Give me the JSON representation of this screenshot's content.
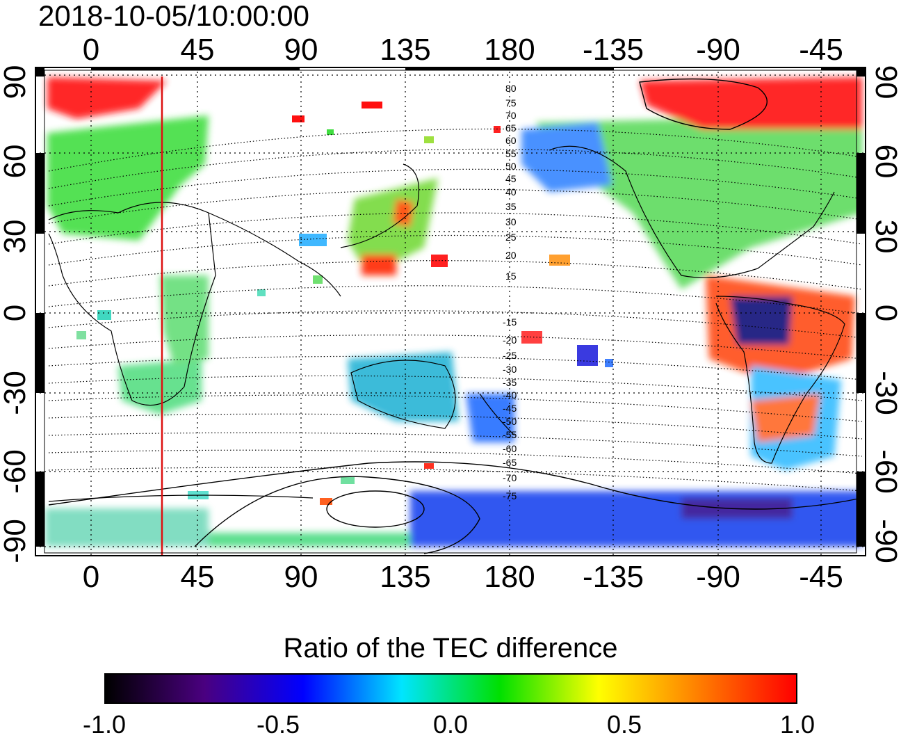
{
  "title": "2018-10-05/10:00:00",
  "map": {
    "top_ticks": [
      "0",
      "45",
      "90",
      "135",
      "180",
      "-135",
      "-90",
      "-45"
    ],
    "bottom_ticks": [
      "0",
      "45",
      "90",
      "135",
      "180",
      "-135",
      "-90",
      "-45"
    ],
    "left_ticks": [
      "90",
      "60",
      "30",
      "0",
      "-30",
      "-60",
      "-90"
    ],
    "right_ticks": [
      "90",
      "60",
      "30",
      "0",
      "-30",
      "-60",
      "-90"
    ],
    "magnetic_latitude_labels_north": [
      "80",
      "75",
      "70",
      "65",
      "60",
      "55",
      "50",
      "45",
      "40",
      "35",
      "30",
      "25",
      "20",
      "15"
    ],
    "magnetic_latitude_labels_south": [
      "-15",
      "-20",
      "-25",
      "-30",
      "-35",
      "-40",
      "-45",
      "-50",
      "-55",
      "-60",
      "-65",
      "-70",
      "-75"
    ],
    "terminator_longitude": 30,
    "terminator_color": "#dd1111"
  },
  "colorbar": {
    "title": "Ratio of the TEC difference",
    "ticks": [
      "-1.0",
      "-0.5",
      "0.0",
      "0.5",
      "1.0"
    ],
    "colors": [
      "#000000",
      "#4a0080",
      "#0000ff",
      "#00e5ff",
      "#00e000",
      "#ffff00",
      "#ff8000",
      "#ff0000"
    ]
  }
}
